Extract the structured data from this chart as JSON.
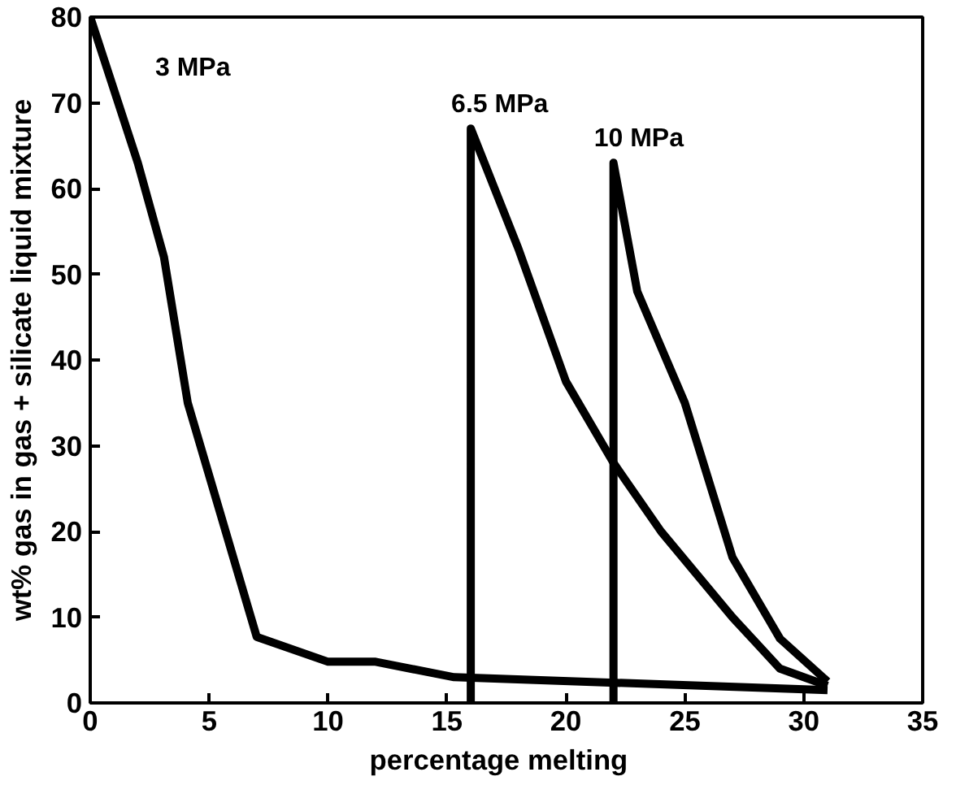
{
  "chart_data": {
    "type": "line",
    "xlabel": "percentage   melting",
    "ylabel": "wt% gas in gas + silicate liquid mixture",
    "xlim": [
      0,
      35
    ],
    "ylim": [
      0,
      80
    ],
    "xticks": [
      0,
      5,
      10,
      15,
      20,
      25,
      30,
      35
    ],
    "yticks": [
      0,
      10,
      20,
      30,
      40,
      50,
      60,
      70,
      80
    ],
    "grid": false,
    "marker": "none",
    "line_style": "solid",
    "series": [
      {
        "name": "3 MPa",
        "color": "#000000",
        "x": [
          0,
          2,
          3.1,
          4.1,
          7,
          10,
          12,
          15.3,
          31
        ],
        "values": [
          80,
          63,
          52,
          35,
          7.7,
          4.8,
          4.8,
          3,
          1.5
        ]
      },
      {
        "name": "6.5 MPa",
        "color": "#000000",
        "x": [
          16,
          16,
          18,
          20,
          22,
          24,
          25.5,
          27,
          28,
          29,
          31
        ],
        "values": [
          0,
          67,
          53,
          37.5,
          28,
          20,
          15,
          10,
          7,
          4,
          2
        ]
      },
      {
        "name": "10 MPa",
        "color": "#000000",
        "x": [
          22,
          22,
          23,
          25,
          27,
          29,
          31
        ],
        "values": [
          0,
          63,
          48,
          35,
          17,
          7.5,
          2.5
        ]
      }
    ]
  }
}
